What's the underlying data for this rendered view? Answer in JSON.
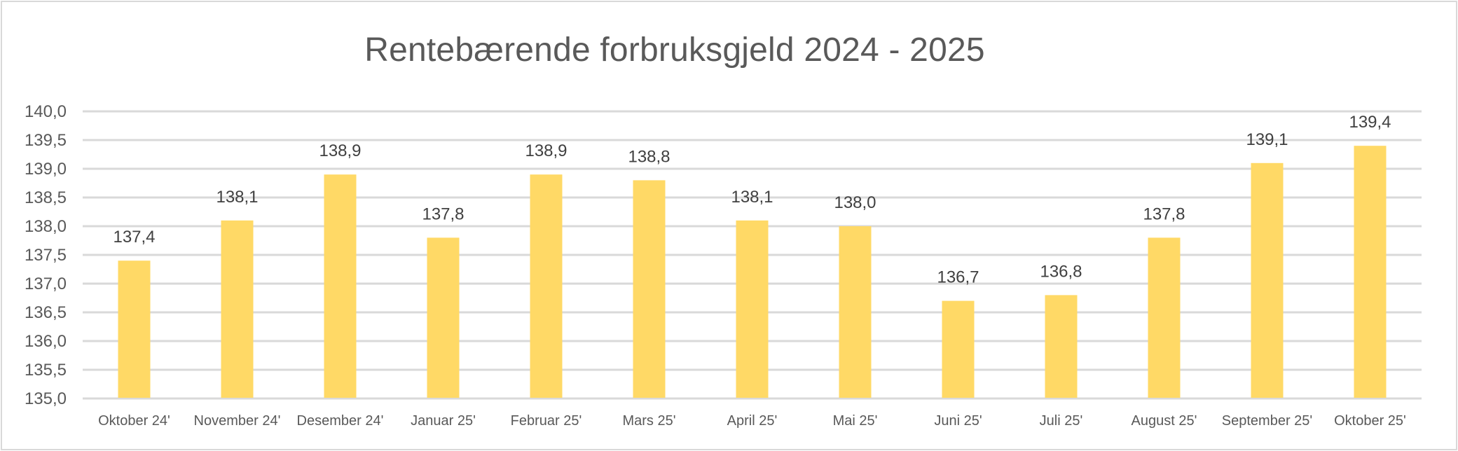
{
  "chart_data": {
    "type": "bar",
    "title": "Rentebærende forbruksgjeld 2024 - 2025",
    "xlabel": "",
    "ylabel": "",
    "ylim": [
      135.0,
      140.0
    ],
    "ytick_step": 0.5,
    "yticks": [
      "135,0",
      "135,5",
      "136,0",
      "136,5",
      "137,0",
      "137,5",
      "138,0",
      "138,5",
      "139,0",
      "139,5",
      "140,0"
    ],
    "grid": true,
    "legend": null,
    "categories": [
      "Oktober 24'",
      "November 24'",
      "Desember 24'",
      "Januar 25'",
      "Februar 25'",
      "Mars 25'",
      "April 25'",
      "Mai 25'",
      "Juni 25'",
      "Juli 25'",
      "August 25'",
      "September 25'",
      "Oktober 25'"
    ],
    "values": [
      137.4,
      138.1,
      138.9,
      137.8,
      138.9,
      138.8,
      138.1,
      138.0,
      136.7,
      136.8,
      137.8,
      139.1,
      139.4
    ],
    "data_labels": [
      "137,4",
      "138,1",
      "138,9",
      "137,8",
      "138,9",
      "138,8",
      "138,1",
      "138,0",
      "136,7",
      "136,8",
      "137,8",
      "139,1",
      "139,4"
    ],
    "colors": {
      "bar": "#FFD966",
      "grid": "#D9D9D9",
      "text": "#595959",
      "label": "#404040"
    }
  }
}
